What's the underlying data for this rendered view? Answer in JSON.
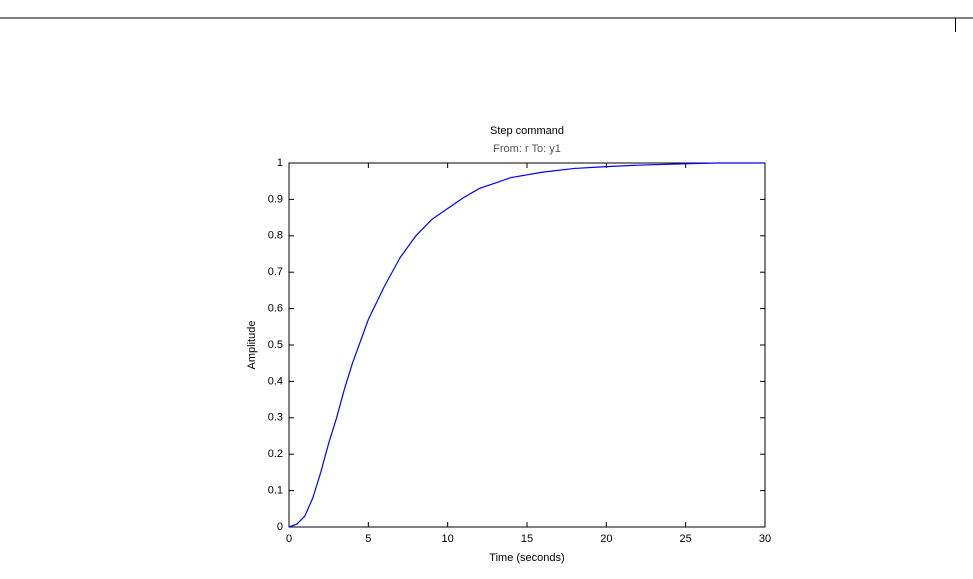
{
  "chart_data": {
    "type": "line",
    "title": "Step command",
    "subtitle": "From: r  To: y1",
    "x_label": "Time (seconds)",
    "y_label": "Amplitude",
    "x": [
      0,
      0.5,
      1,
      1.5,
      2,
      2.5,
      3,
      3.5,
      4,
      5,
      6,
      7,
      8,
      9,
      10,
      11,
      12,
      13,
      14,
      16,
      18,
      20,
      22,
      25,
      27,
      30
    ],
    "values": [
      0,
      0.008,
      0.03,
      0.08,
      0.15,
      0.23,
      0.3,
      0.38,
      0.45,
      0.57,
      0.66,
      0.74,
      0.8,
      0.845,
      0.875,
      0.905,
      0.93,
      0.945,
      0.96,
      0.975,
      0.985,
      0.99,
      0.994,
      0.998,
      1,
      1
    ],
    "color": "#0000ff",
    "xlim": [
      0,
      30
    ],
    "xticks": [
      0,
      5,
      10,
      15,
      20,
      25,
      30
    ],
    "ylim": [
      0,
      1
    ],
    "yticks": [
      0,
      0.1,
      0.2,
      0.3,
      0.4,
      0.5,
      0.6,
      0.7,
      0.8,
      0.9,
      1
    ],
    "grid": false
  }
}
